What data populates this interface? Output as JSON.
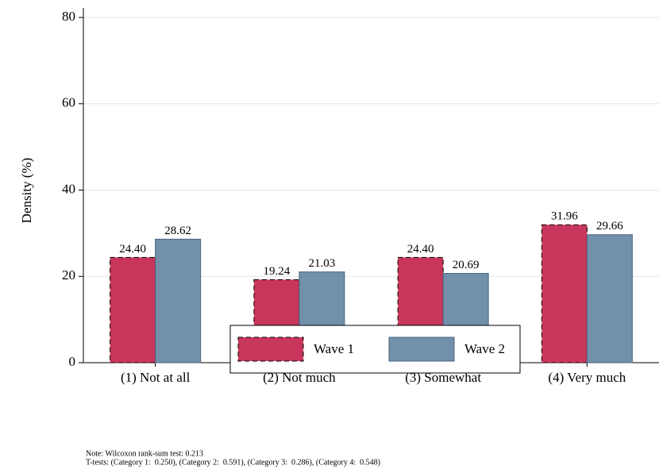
{
  "chart_data": {
    "type": "bar",
    "ylabel": "Density (%)",
    "categories": [
      "(1) Not at all",
      "(2) Not much",
      "(3) Somewhat",
      "(4) Very much"
    ],
    "series": [
      {
        "name": "Wave 1",
        "color": "#c9365b",
        "values": [
          24.4,
          19.24,
          24.4,
          31.96
        ],
        "value_labels": [
          "24.40",
          "19.24",
          "24.40",
          "31.96"
        ]
      },
      {
        "name": "Wave 2",
        "color": "#7390ab",
        "values": [
          28.62,
          21.03,
          20.69,
          29.66
        ],
        "value_labels": [
          "28.62",
          "21.03",
          "20.69",
          "29.66"
        ]
      }
    ],
    "ylim": [
      0,
      80
    ],
    "yticks": [
      0,
      20,
      40,
      60,
      80
    ],
    "grid": true,
    "legend": "bottom",
    "notes": [
      "Note: Wilcoxon rank-sum test: 0.213",
      "T-tests: (Category 1:  0.250), (Category 2:  0.591), (Category 3:  0.286), (Category 4:  0.548)"
    ]
  }
}
